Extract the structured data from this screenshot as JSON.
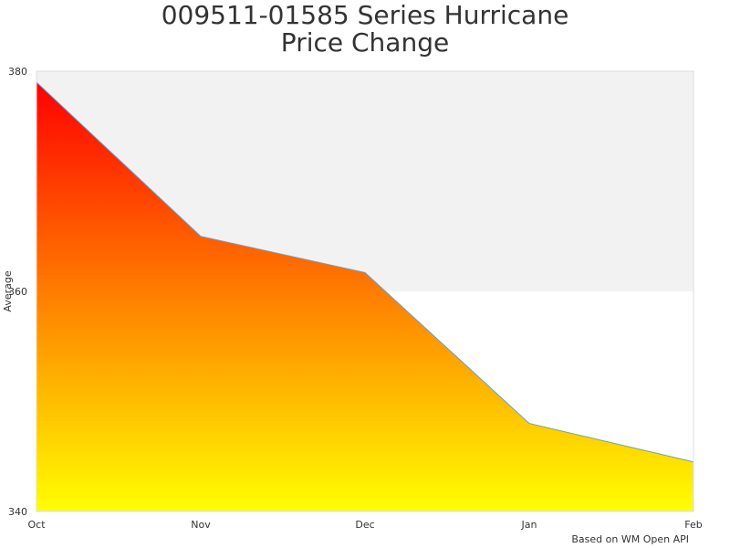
{
  "chart_data": {
    "type": "area",
    "title_line1": "009511-01585 Series Hurricane",
    "title_line2": "Price Change",
    "xlabel": "",
    "ylabel": "Average",
    "categories": [
      "Oct",
      "Nov",
      "Dec",
      "Jan",
      "Feb"
    ],
    "values": [
      379,
      365,
      361.7,
      348,
      344.5
    ],
    "ylim": [
      340,
      380
    ],
    "yticks": [
      340,
      360,
      380
    ],
    "bands": [
      {
        "from": 360,
        "to": 380,
        "color": "#f2f2f2"
      }
    ],
    "gradient": {
      "top": "#ff0000",
      "bottom": "#ffff00"
    },
    "line_color": "#5ba3dc",
    "credit": "Based on WM Open API"
  }
}
